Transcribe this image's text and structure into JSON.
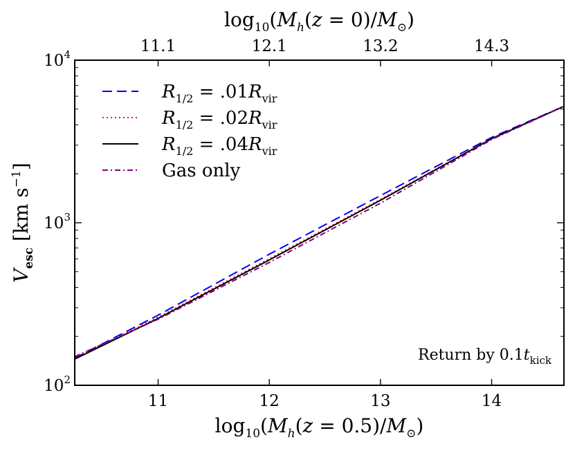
{
  "chart_data": {
    "type": "line",
    "title": "",
    "xlabel": "log10(Mh(z = 0.5)/M⊙)",
    "xlabel_top": "log10(Mh(z = 0)/M⊙)",
    "ylabel": "Vesc [km s⁻¹]",
    "xlim": [
      10.25,
      14.65
    ],
    "ylim": [
      100,
      10000
    ],
    "yscale": "log",
    "grid": false,
    "legend_position": "top-left",
    "xticks": [
      11,
      12,
      13,
      14
    ],
    "xtick_labels": [
      "11",
      "12",
      "13",
      "14"
    ],
    "top_xticks": [
      11,
      12,
      13,
      14
    ],
    "top_xtick_labels": [
      "11.1",
      "12.1",
      "13.2",
      "14.3"
    ],
    "yticks": [
      100,
      1000,
      10000
    ],
    "ytick_labels": [
      {
        "base": "10",
        "exp": "2"
      },
      {
        "base": "10",
        "exp": "3"
      },
      {
        "base": "10",
        "exp": "4"
      }
    ],
    "annotation": {
      "text": "Return by 0.1",
      "var": "t",
      "sub": "kick"
    },
    "series": [
      {
        "name": "R1/2 = .01Rvir",
        "legend": {
          "prefix": "R",
          "prefix_sub": "1/2",
          "middle": " = .01",
          "var": "R",
          "var_sub": "vir"
        },
        "color": "#0000ff",
        "style": "dashed",
        "x": [
          10.25,
          11.0,
          12.0,
          13.0,
          14.0,
          14.65
        ],
        "y": [
          147,
          270,
          640,
          1470,
          3350,
          5200
        ]
      },
      {
        "name": "R1/2 = .02Rvir",
        "legend": {
          "prefix": "R",
          "prefix_sub": "1/2",
          "middle": " = .02",
          "var": "R",
          "var_sub": "vir"
        },
        "color": "#ff0000",
        "style": "dotted",
        "x": [
          10.25,
          11.0,
          12.0,
          13.0,
          14.0,
          14.65
        ],
        "y": [
          146,
          262,
          600,
          1390,
          3300,
          5200
        ]
      },
      {
        "name": "R1/2 = .04Rvir",
        "legend": {
          "prefix": "R",
          "prefix_sub": "1/2",
          "middle": " = .04",
          "var": "R",
          "var_sub": "vir"
        },
        "color": "#000000",
        "style": "solid",
        "x": [
          10.25,
          11.0,
          12.0,
          13.0,
          14.0,
          14.65
        ],
        "y": [
          145,
          258,
          590,
          1375,
          3290,
          5200
        ]
      },
      {
        "name": "Gas only",
        "legend": {
          "prefix": "Gas only"
        },
        "color": "#800080",
        "style": "dashdot",
        "x": [
          10.25,
          11.0,
          12.0,
          13.0,
          14.0,
          14.65
        ],
        "y": [
          150,
          255,
          570,
          1320,
          3250,
          5200
        ]
      }
    ]
  }
}
